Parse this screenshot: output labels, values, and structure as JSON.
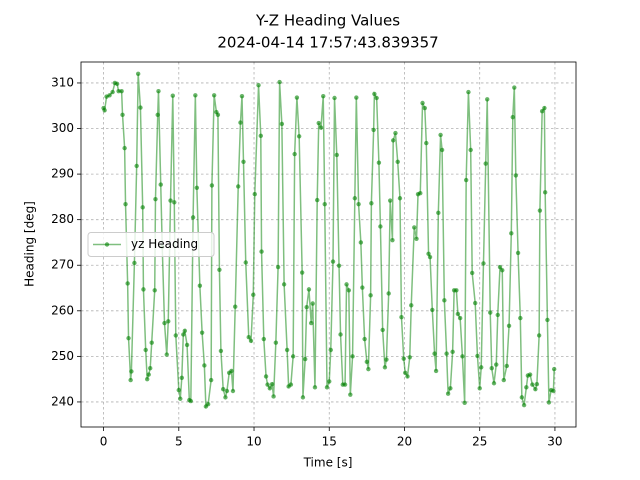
{
  "chart_data": {
    "type": "line",
    "title": "Y-Z Heading Values",
    "subtitle": "2024-04-14 17:57:43.839357",
    "xlabel": "Time [s]",
    "ylabel": "Heading [deg]",
    "x": [
      0,
      0.07,
      0.2,
      0.4,
      0.6,
      0.75,
      0.9,
      1.0,
      1.2,
      1.26,
      1.4,
      1.46,
      1.6,
      1.66,
      1.8,
      1.85,
      2.05,
      2.2,
      2.3,
      2.45,
      2.6,
      2.65,
      2.8,
      2.9,
      3.0,
      3.1,
      3.2,
      3.4,
      3.45,
      3.6,
      3.65,
      3.8,
      3.9,
      4.05,
      4.2,
      4.3,
      4.45,
      4.6,
      4.7,
      4.8,
      5.0,
      5.1,
      5.2,
      5.3,
      5.4,
      5.55,
      5.7,
      5.8,
      5.95,
      6.1,
      6.2,
      6.4,
      6.55,
      6.7,
      6.8,
      6.95,
      7.15,
      7.2,
      7.35,
      7.5,
      7.6,
      7.7,
      7.8,
      7.95,
      8.1,
      8.2,
      8.35,
      8.5,
      8.6,
      8.75,
      8.95,
      9.1,
      9.2,
      9.3,
      9.45,
      9.65,
      9.8,
      9.95,
      10.05,
      10.3,
      10.45,
      10.5,
      10.65,
      10.8,
      10.9,
      11.05,
      11.2,
      11.3,
      11.45,
      11.6,
      11.7,
      11.85,
      12.0,
      12.2,
      12.3,
      12.45,
      12.6,
      12.7,
      12.85,
      13.0,
      13.2,
      13.25,
      13.4,
      13.5,
      13.65,
      13.8,
      13.9,
      14.05,
      14.2,
      14.3,
      14.45,
      14.6,
      14.7,
      14.85,
      15.0,
      15.1,
      15.25,
      15.35,
      15.5,
      15.65,
      15.75,
      15.9,
      16.05,
      16.15,
      16.3,
      16.4,
      16.55,
      16.7,
      16.8,
      16.95,
      17.1,
      17.2,
      17.35,
      17.5,
      17.6,
      17.75,
      17.8,
      17.95,
      18.0,
      18.15,
      18.3,
      18.4,
      18.55,
      18.7,
      18.8,
      18.95,
      19.05,
      19.2,
      19.25,
      19.4,
      19.55,
      19.7,
      19.8,
      19.95,
      20.05,
      20.2,
      20.35,
      20.45,
      20.65,
      20.8,
      20.9,
      21.05,
      21.2,
      21.35,
      21.45,
      21.6,
      21.7,
      21.85,
      22.0,
      22.1,
      22.25,
      22.4,
      22.5,
      22.65,
      22.8,
      22.9,
      23.05,
      23.2,
      23.3,
      23.45,
      23.55,
      23.7,
      23.85,
      24.0,
      24.1,
      24.25,
      24.4,
      24.5,
      24.7,
      24.85,
      25.0,
      25.1,
      25.25,
      25.4,
      25.5,
      25.7,
      25.8,
      25.95,
      26.1,
      26.2,
      26.35,
      26.5,
      26.6,
      26.8,
      26.95,
      27.1,
      27.2,
      27.3,
      27.4,
      27.55,
      27.7,
      27.8,
      27.95,
      28.1,
      28.2,
      28.35,
      28.5,
      28.7,
      28.8,
      28.95,
      29.0,
      29.15,
      29.3,
      29.35,
      29.5,
      29.6,
      29.75,
      29.9,
      29.95
    ],
    "series": [
      {
        "name": "yz Heading",
        "color": "#008000",
        "values": [
          304.5,
          304,
          307,
          307.3,
          308,
          310,
          309.8,
          308.2,
          308.2,
          303,
          295.7,
          283.4,
          266,
          254,
          244.8,
          246.7,
          270.5,
          291.8,
          312,
          304.6,
          282.7,
          264.7,
          251.4,
          245,
          246,
          247.4,
          253,
          264.5,
          284.5,
          303,
          308.2,
          287.7,
          274,
          257.3,
          250.4,
          257.7,
          284.2,
          307.2,
          283.8,
          254.6,
          242.6,
          240.7,
          245.3,
          254.8,
          255.6,
          252.5,
          240.4,
          240.2,
          280.5,
          307.3,
          287,
          265.5,
          255.2,
          248,
          239,
          239.5,
          244.8,
          287.5,
          307.3,
          303.6,
          303,
          269,
          251.2,
          242.8,
          241,
          242.4,
          246.4,
          246.8,
          242.4,
          260.9,
          287.3,
          301.3,
          307.1,
          292.7,
          270.6,
          254.2,
          253.4,
          263.5,
          285.6,
          309.5,
          298.4,
          273,
          253.8,
          245.6,
          243.8,
          243,
          243.9,
          241.2,
          253,
          269.6,
          310.2,
          301,
          265.8,
          251.4,
          243.4,
          243.8,
          250,
          294.4,
          306.8,
          298.3,
          268.4,
          241,
          249.4,
          260.8,
          264.7,
          257.3,
          261.6,
          243.2,
          284.3,
          301.2,
          300.2,
          307.1,
          283.4,
          243.2,
          244.5,
          251.4,
          270.8,
          306.7,
          294.2,
          269.9,
          254.8,
          243.8,
          243.8,
          265.8,
          264.5,
          241.6,
          250,
          284.7,
          306.8,
          283.4,
          275,
          265.1,
          253.8,
          248.8,
          247.2,
          263.4,
          283.6,
          299.7,
          307.6,
          306.7,
          292.5,
          278.5,
          255.8,
          247.6,
          249.3,
          263.8,
          284.2,
          275.5,
          297.4,
          299,
          292.7,
          284.7,
          258.6,
          249.5,
          246.4,
          245.6,
          249.8,
          261.2,
          278.3,
          275.8,
          285.6,
          285.8,
          305.6,
          304.5,
          296.8,
          272.5,
          271.8,
          260.2,
          250.6,
          246.8,
          281.5,
          298.6,
          295.3,
          262.3,
          250.6,
          241.8,
          243,
          251,
          264.5,
          264.5,
          259.3,
          258.4,
          250,
          239.8,
          288.7,
          308,
          295.3,
          268.3,
          261.7,
          250.1,
          243,
          247.6,
          270.4,
          292.3,
          306.4,
          259.6,
          247.4,
          244.1,
          248.2,
          259.1,
          269.6,
          268.9,
          244.8,
          247.9,
          256.7,
          277,
          302.5,
          309,
          289.7,
          272.7,
          258.4,
          241,
          239.3,
          243.2,
          245.8,
          246,
          243.8,
          242.8,
          243.9,
          254.6,
          282,
          303.8,
          304.5,
          286,
          258,
          239.9,
          242.6,
          242.4,
          247.2
        ]
      }
    ],
    "xlim": [
      -1.5,
      31.4
    ],
    "ylim": [
      234.5,
      314.6
    ],
    "xticks": [
      0,
      5,
      10,
      15,
      20,
      25,
      30
    ],
    "yticks": [
      240,
      250,
      260,
      270,
      280,
      290,
      300,
      310
    ],
    "grid": true,
    "legend": "center left"
  }
}
